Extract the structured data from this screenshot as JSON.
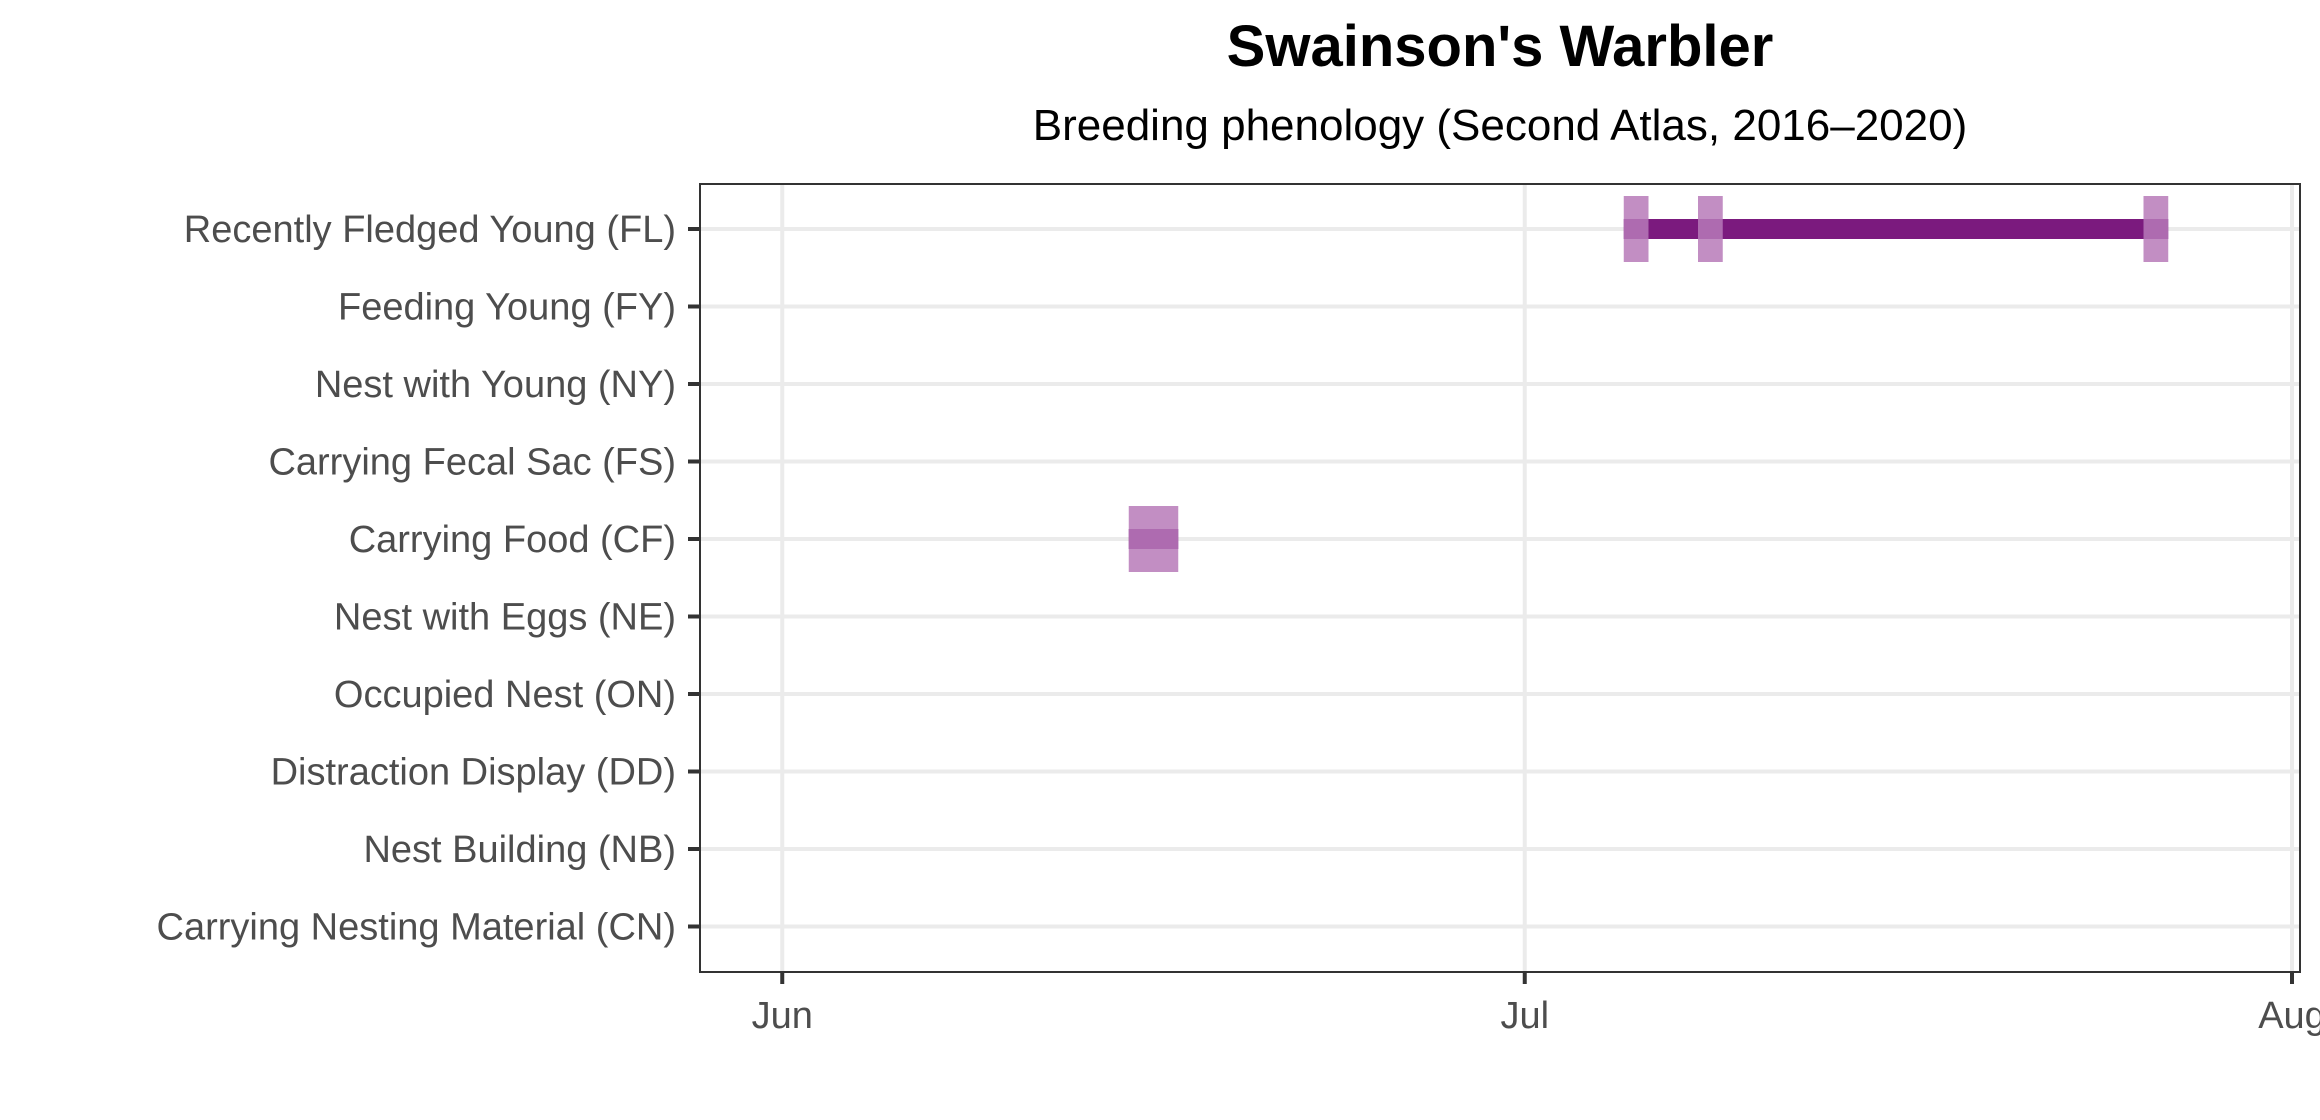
{
  "chart_data": {
    "type": "phenology",
    "title": "Swainson's Warbler",
    "subtitle": "Breeding phenology (Second Atlas, 2016–2020)",
    "xlabel": "",
    "ylabel": "",
    "x_range": [
      "2020-05-29",
      "2020-08-01"
    ],
    "x_ticks": [
      {
        "date": "2020-06-01",
        "label": "Jun"
      },
      {
        "date": "2020-07-01",
        "label": "Jul"
      },
      {
        "date": "2020-08-01",
        "label": "Aug"
      }
    ],
    "categories": [
      "Recently Fledged Young (FL)",
      "Feeding Young (FY)",
      "Nest with Young (NY)",
      "Carrying Fecal Sac (FS)",
      "Carrying Food (CF)",
      "Nest with Eggs (NE)",
      "Occupied Nest (ON)",
      "Distraction Display (DD)",
      "Nest Building (NB)",
      "Carrying Nesting Material (CN)"
    ],
    "ranges": [
      {
        "category": "Recently Fledged Young (FL)",
        "start": "2020-07-05",
        "end": "2020-07-27"
      },
      {
        "category": "Carrying Food (CF)",
        "start": "2020-06-15",
        "end": "2020-06-17"
      }
    ],
    "observations": [
      {
        "category": "Recently Fledged Young (FL)",
        "date": "2020-07-05"
      },
      {
        "category": "Recently Fledged Young (FL)",
        "date": "2020-07-08"
      },
      {
        "category": "Recently Fledged Young (FL)",
        "date": "2020-07-26"
      },
      {
        "category": "Carrying Food (CF)",
        "date": "2020-06-15"
      },
      {
        "category": "Carrying Food (CF)",
        "date": "2020-06-16"
      }
    ],
    "grid": true,
    "legend": "none",
    "colors": {
      "range": "#7b1a7e",
      "observation": "#b77ab9",
      "grid": "#ebebeb",
      "panel_border": "#333333"
    }
  }
}
